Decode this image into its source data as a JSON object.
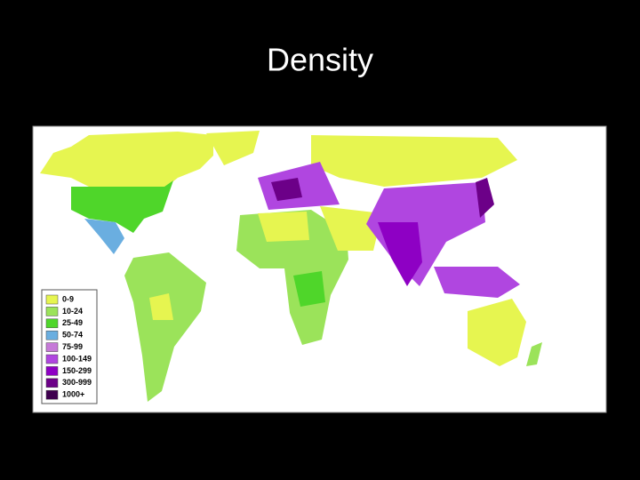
{
  "title": "Density",
  "legend": {
    "items": [
      {
        "label": "0-9",
        "color": "#e6f550"
      },
      {
        "label": "10-24",
        "color": "#9be35a"
      },
      {
        "label": "25-49",
        "color": "#4fd62a"
      },
      {
        "label": "50-74",
        "color": "#6aaee0"
      },
      {
        "label": "75-99",
        "color": "#c67ad8"
      },
      {
        "label": "100-149",
        "color": "#b046e0"
      },
      {
        "label": "150-299",
        "color": "#8e00c4"
      },
      {
        "label": "300-999",
        "color": "#6c0088"
      },
      {
        "label": "1000+",
        "color": "#3e004e"
      }
    ]
  }
}
